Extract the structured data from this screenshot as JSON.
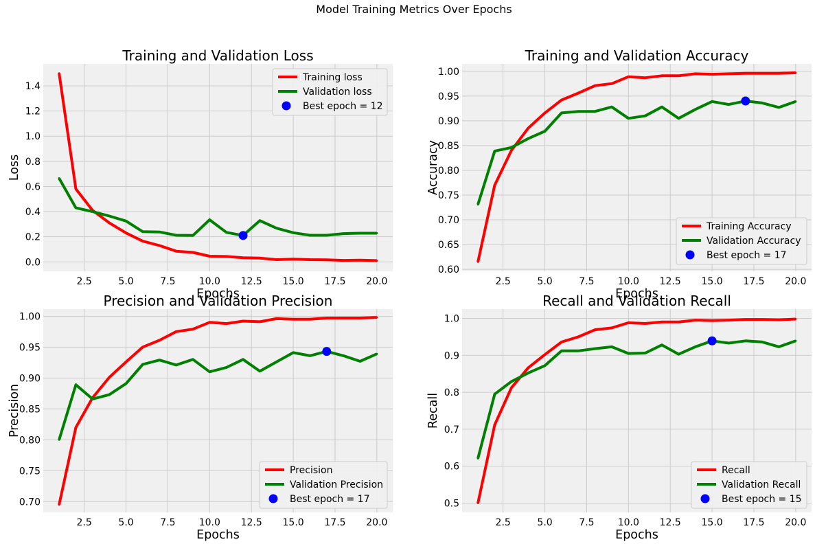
{
  "suptitle": "Model Training Metrics Over Epochs",
  "colors": {
    "background": "#f0f0f0",
    "grid": "#cbcbcb",
    "train": "#ff0000",
    "val": "#008000",
    "best": "#0000ff"
  },
  "chart_data": [
    {
      "type": "line",
      "title": "Training and Validation Loss",
      "xlabel": "Epochs",
      "ylabel": "Loss",
      "xlim": [
        0.05,
        20.95
      ],
      "ylim": [
        -0.075,
        1.575
      ],
      "xticks": [
        2.5,
        5.0,
        7.5,
        10.0,
        12.5,
        15.0,
        17.5,
        20.0
      ],
      "xtick_labels": [
        "2.5",
        "5.0",
        "7.5",
        "10.0",
        "12.5",
        "15.0",
        "17.5",
        "20.0"
      ],
      "yticks": [
        0.0,
        0.2,
        0.4,
        0.6,
        0.8,
        1.0,
        1.2,
        1.4
      ],
      "ytick_labels": [
        "0.0",
        "0.2",
        "0.4",
        "0.6",
        "0.8",
        "1.0",
        "1.2",
        "1.4"
      ],
      "x": [
        1,
        2,
        3,
        4,
        5,
        6,
        7,
        8,
        9,
        10,
        11,
        12,
        13,
        14,
        15,
        16,
        17,
        18,
        19,
        20
      ],
      "series": [
        {
          "name": "Training loss",
          "color": "#ff0000",
          "values": [
            1.5,
            0.58,
            0.41,
            0.31,
            0.23,
            0.165,
            0.13,
            0.085,
            0.075,
            0.045,
            0.043,
            0.033,
            0.03,
            0.018,
            0.022,
            0.018,
            0.017,
            0.012,
            0.014,
            0.01
          ]
        },
        {
          "name": "Validation loss",
          "color": "#008000",
          "values": [
            0.665,
            0.43,
            0.4,
            0.365,
            0.325,
            0.24,
            0.238,
            0.212,
            0.21,
            0.335,
            0.235,
            0.21,
            0.328,
            0.268,
            0.232,
            0.212,
            0.212,
            0.225,
            0.228,
            0.228
          ]
        }
      ],
      "best": {
        "label": "Best epoch = 12",
        "x": 12,
        "y": 0.21
      },
      "legend": "top-right"
    },
    {
      "type": "line",
      "title": "Training and Validation Accuracy",
      "xlabel": "Epochs",
      "ylabel": "Accuracy",
      "xlim": [
        0.05,
        20.95
      ],
      "ylim": [
        0.596,
        1.015
      ],
      "xticks": [
        2.5,
        5.0,
        7.5,
        10.0,
        12.5,
        15.0,
        17.5,
        20.0
      ],
      "xtick_labels": [
        "2.5",
        "5.0",
        "7.5",
        "10.0",
        "12.5",
        "15.0",
        "17.5",
        "20.0"
      ],
      "yticks": [
        0.6,
        0.65,
        0.7,
        0.75,
        0.8,
        0.85,
        0.9,
        0.95,
        1.0
      ],
      "ytick_labels": [
        "0.60",
        "0.65",
        "0.70",
        "0.75",
        "0.80",
        "0.85",
        "0.90",
        "0.95",
        "1.00"
      ],
      "x": [
        1,
        2,
        3,
        4,
        5,
        6,
        7,
        8,
        9,
        10,
        11,
        12,
        13,
        14,
        15,
        16,
        17,
        18,
        19,
        20
      ],
      "series": [
        {
          "name": "Training Accuracy",
          "color": "#ff0000",
          "values": [
            0.615,
            0.77,
            0.84,
            0.885,
            0.916,
            0.942,
            0.956,
            0.971,
            0.975,
            0.989,
            0.987,
            0.991,
            0.991,
            0.995,
            0.994,
            0.995,
            0.996,
            0.996,
            0.996,
            0.997
          ]
        },
        {
          "name": "Validation Accuracy",
          "color": "#008000",
          "values": [
            0.731,
            0.839,
            0.846,
            0.864,
            0.879,
            0.916,
            0.919,
            0.919,
            0.928,
            0.905,
            0.91,
            0.928,
            0.905,
            0.923,
            0.939,
            0.933,
            0.94,
            0.936,
            0.927,
            0.939
          ]
        }
      ],
      "best": {
        "label": "Best epoch = 17",
        "x": 17,
        "y": 0.94
      },
      "legend": "bottom-right"
    },
    {
      "type": "line",
      "title": "Precision and Validation Precision",
      "xlabel": "Epochs",
      "ylabel": "Precision",
      "xlim": [
        0.05,
        20.95
      ],
      "ylim": [
        0.6825,
        1.0115
      ],
      "xticks": [
        2.5,
        5.0,
        7.5,
        10.0,
        12.5,
        15.0,
        17.5,
        20.0
      ],
      "xtick_labels": [
        "2.5",
        "5.0",
        "7.5",
        "10.0",
        "12.5",
        "15.0",
        "17.5",
        "20.0"
      ],
      "yticks": [
        0.7,
        0.75,
        0.8,
        0.85,
        0.9,
        0.95,
        1.0
      ],
      "ytick_labels": [
        "0.70",
        "0.75",
        "0.80",
        "0.85",
        "0.90",
        "0.95",
        "1.00"
      ],
      "x": [
        1,
        2,
        3,
        4,
        5,
        6,
        7,
        8,
        9,
        10,
        11,
        12,
        13,
        14,
        15,
        16,
        17,
        18,
        19,
        20
      ],
      "series": [
        {
          "name": "Precision",
          "color": "#ff0000",
          "values": [
            0.695,
            0.82,
            0.868,
            0.901,
            0.926,
            0.95,
            0.961,
            0.975,
            0.979,
            0.99,
            0.988,
            0.992,
            0.991,
            0.996,
            0.995,
            0.995,
            0.997,
            0.997,
            0.997,
            0.998
          ]
        },
        {
          "name": "Validation Precision",
          "color": "#008000",
          "values": [
            0.8,
            0.889,
            0.866,
            0.873,
            0.891,
            0.922,
            0.929,
            0.921,
            0.93,
            0.91,
            0.917,
            0.93,
            0.911,
            0.926,
            0.941,
            0.936,
            0.943,
            0.936,
            0.927,
            0.939
          ]
        }
      ],
      "best": {
        "label": "Best epoch = 17",
        "x": 17,
        "y": 0.943
      },
      "legend": "bottom-right"
    },
    {
      "type": "line",
      "title": "Recall and Validation Recall",
      "xlabel": "Epochs",
      "ylabel": "Recall",
      "xlim": [
        0.05,
        20.95
      ],
      "ylim": [
        0.475,
        1.025
      ],
      "xticks": [
        2.5,
        5.0,
        7.5,
        10.0,
        12.5,
        15.0,
        17.5,
        20.0
      ],
      "xtick_labels": [
        "2.5",
        "5.0",
        "7.5",
        "10.0",
        "12.5",
        "15.0",
        "17.5",
        "20.0"
      ],
      "yticks": [
        0.5,
        0.6,
        0.7,
        0.8,
        0.9,
        1.0
      ],
      "ytick_labels": [
        "0.5",
        "0.6",
        "0.7",
        "0.8",
        "0.9",
        "1.0"
      ],
      "x": [
        1,
        2,
        3,
        4,
        5,
        6,
        7,
        8,
        9,
        10,
        11,
        12,
        13,
        14,
        15,
        16,
        17,
        18,
        19,
        20
      ],
      "series": [
        {
          "name": "Recall",
          "color": "#ff0000",
          "values": [
            0.5,
            0.712,
            0.812,
            0.866,
            0.902,
            0.936,
            0.95,
            0.969,
            0.974,
            0.988,
            0.986,
            0.99,
            0.99,
            0.995,
            0.994,
            0.995,
            0.997,
            0.997,
            0.996,
            0.998
          ]
        },
        {
          "name": "Validation Recall",
          "color": "#008000",
          "values": [
            0.621,
            0.795,
            0.829,
            0.852,
            0.872,
            0.912,
            0.912,
            0.918,
            0.923,
            0.905,
            0.906,
            0.928,
            0.903,
            0.923,
            0.939,
            0.933,
            0.939,
            0.936,
            0.923,
            0.939
          ]
        }
      ],
      "best": {
        "label": "Best epoch = 15",
        "x": 15,
        "y": 0.939
      },
      "legend": "bottom-right"
    }
  ]
}
